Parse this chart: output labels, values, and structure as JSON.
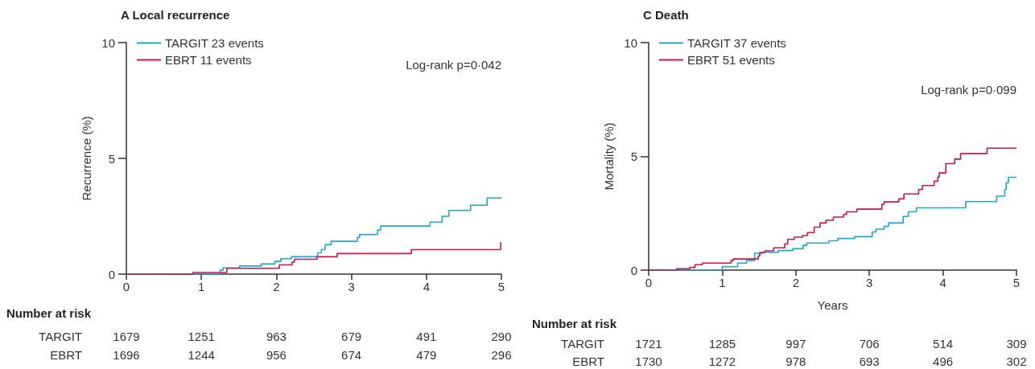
{
  "chart_data": [
    {
      "type": "step",
      "title": "A Local recurrence",
      "ylabel": "Recurrence (%)",
      "xlim": [
        0,
        5
      ],
      "xticks": [
        0,
        1,
        2,
        3,
        4,
        5
      ],
      "ylim": [
        0,
        10
      ],
      "yticks": [
        0,
        5,
        10
      ],
      "grid": false,
      "legend": "top left",
      "marker": "none",
      "line_style": "solid",
      "series": [
        {
          "name": "TARGIT 23 events",
          "color": "#1fa8c9",
          "x": [
            0,
            1.25,
            1.29,
            1.51,
            1.8,
            1.98,
            2.06,
            2.2,
            2.55,
            2.6,
            2.65,
            2.73,
            3.08,
            3.11,
            3.35,
            3.39,
            4.05,
            4.21,
            4.3,
            4.59,
            4.81,
            5
          ],
          "values": [
            0,
            0.17,
            0.27,
            0.35,
            0.44,
            0.55,
            0.67,
            0.75,
            0.92,
            1.06,
            1.27,
            1.42,
            1.59,
            1.71,
            1.9,
            2.08,
            2.25,
            2.5,
            2.75,
            2.98,
            3.29,
            3.29
          ]
        },
        {
          "name": "EBRT 11 events",
          "color": "#c8164a",
          "x": [
            0,
            0.89,
            1.34,
            2.04,
            2.21,
            2.24,
            2.54,
            2.81,
            3.8,
            4.99,
            5
          ],
          "values": [
            0,
            0.07,
            0.25,
            0.4,
            0.52,
            0.64,
            0.75,
            0.89,
            1.06,
            1.35,
            1.35
          ]
        }
      ],
      "annotations": [
        "Log-rank p=0·042",
        "Number at risk",
        "TARGIT",
        "1679",
        "1251",
        "963",
        "679",
        "491",
        "290",
        "EBRT",
        "1696",
        "1244",
        "956",
        "674",
        "479",
        "296"
      ]
    },
    {
      "type": "step",
      "title": "C Death",
      "xlabel": "Years",
      "ylabel": "Mortality (%)",
      "xlim": [
        0,
        5
      ],
      "xticks": [
        0,
        1,
        2,
        3,
        4,
        5
      ],
      "ylim": [
        0,
        10
      ],
      "yticks": [
        0,
        5,
        10
      ],
      "grid": false,
      "legend": "top left",
      "marker": "none",
      "line_style": "solid",
      "series": [
        {
          "name": "TARGIT 37 events",
          "color": "#1fa8c9",
          "x": [
            0,
            1.0,
            1.21,
            1.33,
            1.44,
            1.55,
            1.76,
            1.96,
            2.1,
            2.15,
            2.45,
            2.57,
            2.8,
            3.04,
            3.09,
            3.2,
            3.26,
            3.46,
            3.53,
            3.64,
            4.31,
            4.73,
            4.84,
            4.86,
            4.89,
            5
          ],
          "values": [
            0,
            0.15,
            0.31,
            0.42,
            0.74,
            0.78,
            0.86,
            0.94,
            1.09,
            1.19,
            1.29,
            1.39,
            1.47,
            1.68,
            1.8,
            1.92,
            2.07,
            2.36,
            2.56,
            2.74,
            3.01,
            3.25,
            3.54,
            3.84,
            4.08,
            4.08
          ]
        },
        {
          "name": "EBRT 51 events",
          "color": "#c8164a",
          "x": [
            0,
            0.38,
            0.56,
            0.63,
            0.73,
            1.12,
            1.15,
            1.49,
            1.51,
            1.58,
            1.7,
            1.85,
            1.89,
            1.98,
            2.09,
            2.16,
            2.25,
            2.33,
            2.41,
            2.51,
            2.65,
            2.69,
            2.83,
            3.17,
            3.2,
            3.4,
            3.47,
            3.67,
            3.72,
            3.88,
            3.93,
            3.95,
            4.04,
            4.16,
            4.24,
            4.6,
            5
          ],
          "values": [
            0,
            0.06,
            0.12,
            0.24,
            0.31,
            0.42,
            0.49,
            0.62,
            0.78,
            0.85,
            0.98,
            1.15,
            1.35,
            1.45,
            1.52,
            1.65,
            1.89,
            2.07,
            2.19,
            2.33,
            2.45,
            2.56,
            2.68,
            2.89,
            3.0,
            3.13,
            3.35,
            3.54,
            3.72,
            3.91,
            4.09,
            4.27,
            4.68,
            4.88,
            5.12,
            5.36,
            5.36
          ]
        }
      ],
      "annotations": [
        "Log-rank p=0·099",
        "Number at risk",
        "TARGIT",
        "1721",
        "1285",
        "997",
        "706",
        "514",
        "309",
        "EBRT",
        "1730",
        "1272",
        "978",
        "693",
        "496",
        "302"
      ]
    }
  ]
}
